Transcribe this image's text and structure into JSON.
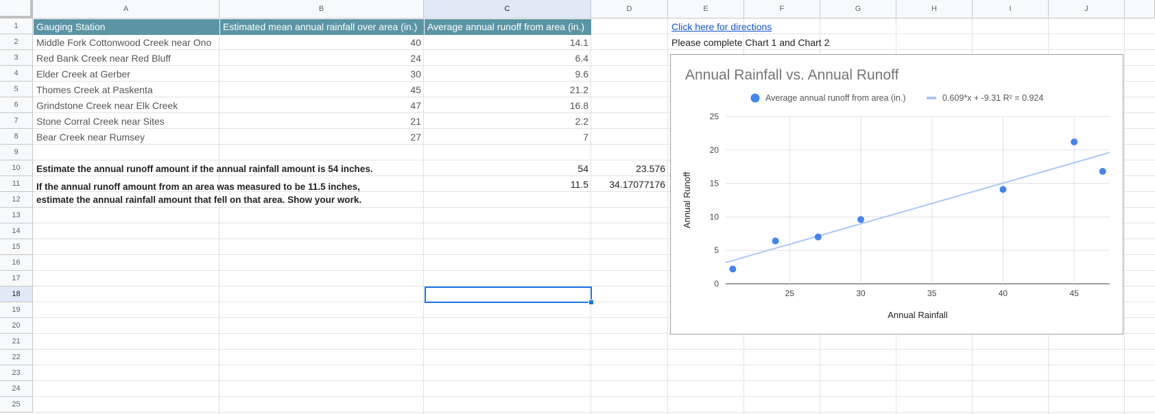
{
  "columns": [
    "A",
    "B",
    "C",
    "D",
    "E",
    "F",
    "G",
    "H",
    "I",
    "J"
  ],
  "rows": [
    "1",
    "2",
    "3",
    "4",
    "5",
    "6",
    "7",
    "8",
    "9",
    "10",
    "11",
    "12",
    "13",
    "14",
    "15",
    "16",
    "17",
    "18",
    "19",
    "20",
    "21",
    "22",
    "23",
    "24",
    "25"
  ],
  "selected_column": "C",
  "selected_row": "18",
  "header": {
    "station": "Gauging Station",
    "rainfall": "Estimated mean annual rainfall over area (in.)",
    "runoff": "Average annual runoff from area (in.)"
  },
  "table": [
    {
      "station": "Middle Fork Cottonwood Creek near Ono",
      "rainfall": "40",
      "runoff": "14.1"
    },
    {
      "station": "Red Bank Creek near Red Bluff",
      "rainfall": "24",
      "runoff": "6.4"
    },
    {
      "station": "Elder Creek at Gerber",
      "rainfall": "30",
      "runoff": "9.6"
    },
    {
      "station": "Thomes Creek at Paskenta",
      "rainfall": "45",
      "runoff": "21.2"
    },
    {
      "station": "Grindstone Creek near Elk Creek",
      "rainfall": "47",
      "runoff": "16.8"
    },
    {
      "station": "Stone Corral Creek near Sites",
      "rainfall": "21",
      "runoff": "2.2"
    },
    {
      "station": "Bear Creek near Rumsey",
      "rainfall": "27",
      "runoff": "7"
    }
  ],
  "question1": {
    "text": "Estimate the annual runoff amount if the annual rainfall amount is 54 inches.",
    "c": "54",
    "d": "23.576"
  },
  "question2": {
    "line1": "If the annual runoff amount from an area was measured to be 11.5 inches,",
    "line2": "estimate the annual rainfall amount that fell on that area. Show your work.",
    "c": "11.5",
    "d": "34.17077176"
  },
  "side": {
    "link": "Click here for directions",
    "instruction": "Please complete Chart 1 and Chart 2"
  },
  "colors": {
    "header_fill": "#5b95a5",
    "point": "#4285f4",
    "trendline": "#a8c7fa",
    "link": "#1155cc"
  },
  "chart_data": {
    "type": "scatter",
    "title": "Annual Rainfall vs. Annual Runoff",
    "xlabel": "Annual Rainfall",
    "ylabel": "Annual Runoff",
    "xlim": [
      20.5,
      47.5
    ],
    "ylim": [
      0,
      25
    ],
    "xticks": [
      25,
      30,
      35,
      40,
      45
    ],
    "yticks": [
      0,
      5,
      10,
      15,
      20,
      25
    ],
    "grid": true,
    "legend_position": "top",
    "series": [
      {
        "name": "Average annual runoff from area (in.)",
        "points": [
          [
            40,
            14.1
          ],
          [
            24,
            6.4
          ],
          [
            30,
            9.6
          ],
          [
            45,
            21.2
          ],
          [
            47,
            16.8
          ],
          [
            21,
            2.2
          ],
          [
            27,
            7
          ]
        ]
      }
    ],
    "trendline": {
      "label": "0.609*x + -9.31 R² = 0.924",
      "slope": 0.609,
      "intercept": -9.31
    }
  }
}
